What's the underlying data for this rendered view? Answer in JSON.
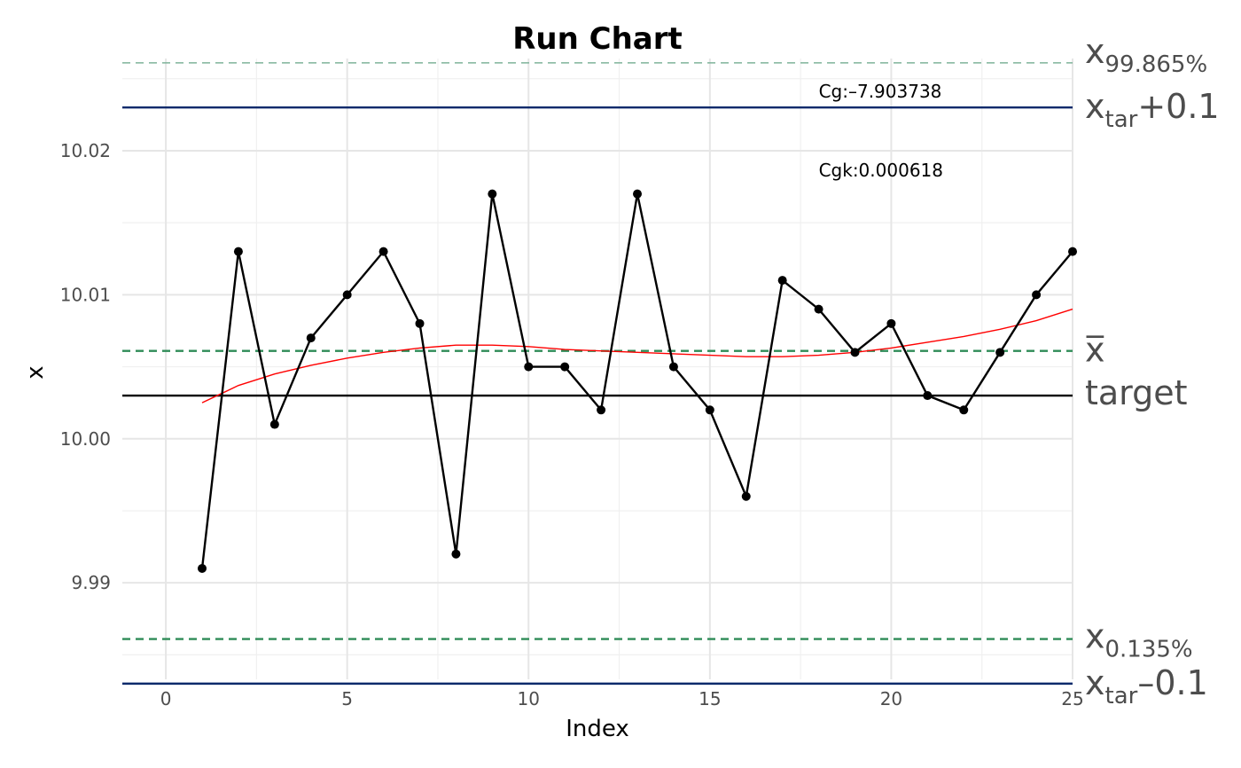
{
  "chart_data": {
    "type": "line",
    "title": "Run Chart",
    "xlabel": "Index",
    "ylabel": "x",
    "xlim": [
      -1.2,
      25
    ],
    "ylim": [
      9.9833,
      10.0264
    ],
    "x_ticks": [
      0,
      5,
      10,
      15,
      20,
      25
    ],
    "y_ticks": [
      9.99,
      10.0,
      10.01,
      10.02
    ],
    "y_tick_labels": [
      "9.99",
      "10.00",
      "10.01",
      "10.02"
    ],
    "x_tick_labels": [
      "0",
      "5",
      "10",
      "15",
      "20",
      "25"
    ],
    "grid": true,
    "series": [
      {
        "x": [
          1,
          2,
          3,
          4,
          5,
          6,
          7,
          8,
          9,
          10,
          11,
          12,
          13,
          14,
          15,
          16,
          17,
          18,
          19,
          20,
          21,
          22,
          23,
          24,
          25
        ],
        "values": [
          9.991,
          10.013,
          10.001,
          10.007,
          10.01,
          10.013,
          10.008,
          9.992,
          10.017,
          10.005,
          10.005,
          10.002,
          10.017,
          10.005,
          10.002,
          9.996,
          10.011,
          10.009,
          10.006,
          10.008,
          10.003,
          10.002,
          10.006,
          10.01,
          10.013
        ],
        "color": "#000000"
      }
    ],
    "smooth": {
      "x": [
        1,
        2,
        3,
        4,
        5,
        6,
        7,
        8,
        9,
        10,
        11,
        12,
        13,
        14,
        15,
        16,
        17,
        18,
        19,
        20,
        21,
        22,
        23,
        24,
        25
      ],
      "values": [
        10.0025,
        10.0037,
        10.0045,
        10.0051,
        10.0056,
        10.006,
        10.0063,
        10.0065,
        10.0065,
        10.0064,
        10.0062,
        10.0061,
        10.006,
        10.0059,
        10.0058,
        10.0057,
        10.0057,
        10.0058,
        10.006,
        10.0063,
        10.0067,
        10.0071,
        10.0076,
        10.0082,
        10.009
      ],
      "color": "#ff0000"
    },
    "reference_lines": [
      {
        "value": 10.0261,
        "style": "dashed",
        "color": "#7fb39a",
        "label_main": "x",
        "label_sub": "99.865%",
        "label_suffix": ""
      },
      {
        "value": 10.023,
        "style": "solid",
        "color": "#0b2a6b",
        "label_main": "x",
        "label_sub": "tar",
        "label_suffix": "+0.1"
      },
      {
        "value": 10.0061,
        "style": "dashed",
        "color": "#2e8b57",
        "label_main": "x̅",
        "label_sub": "",
        "label_suffix": ""
      },
      {
        "value": 10.003,
        "style": "solid",
        "color": "#000000",
        "label_main": "target",
        "label_sub": "",
        "label_suffix": ""
      },
      {
        "value": 9.9861,
        "style": "dashed",
        "color": "#2e8b57",
        "label_main": "x",
        "label_sub": "0.135%",
        "label_suffix": ""
      },
      {
        "value": 9.983,
        "style": "solid",
        "color": "#0b2a6b",
        "label_main": "x",
        "label_sub": "tar",
        "label_suffix": "–0.1"
      }
    ],
    "annotations": [
      {
        "text": "Cg:–7.903738",
        "x": 18,
        "y": 10.0237
      },
      {
        "text": "Cgk:0.000618",
        "x": 18,
        "y": 10.0182
      }
    ]
  }
}
